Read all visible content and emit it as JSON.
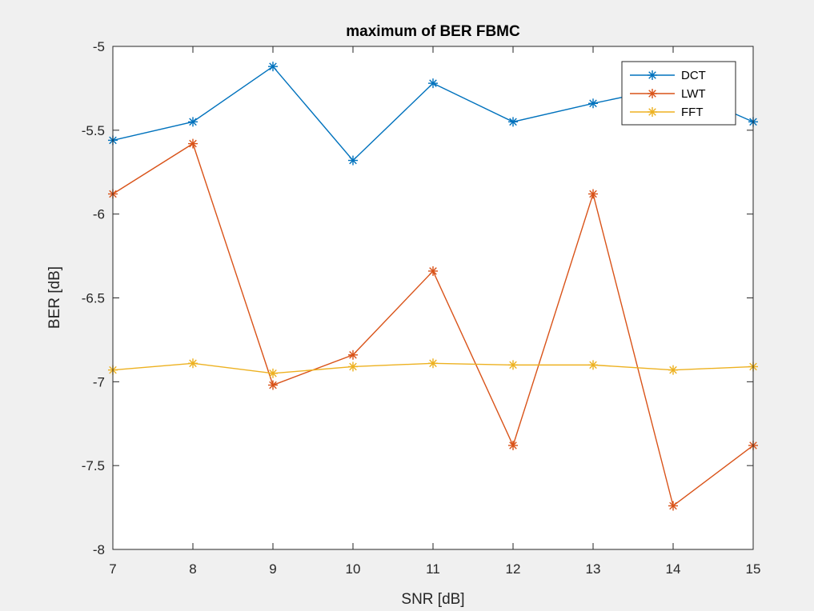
{
  "chart_data": {
    "type": "line",
    "title": "maximum of BER FBMC",
    "xlabel": "SNR [dB]",
    "ylabel": "BER [dB]",
    "x": [
      7,
      8,
      9,
      10,
      11,
      12,
      13,
      14,
      15
    ],
    "xlim": [
      7,
      15
    ],
    "ylim": [
      -8,
      -5
    ],
    "xticks": [
      "7",
      "8",
      "9",
      "10",
      "11",
      "12",
      "13",
      "14",
      "15"
    ],
    "yticks": [
      "-5",
      "-5.5",
      "-6",
      "-6.5",
      "-7",
      "-7.5",
      "-8"
    ],
    "grid": false,
    "legend_position": "top-right",
    "marker": "asterisk",
    "series": [
      {
        "name": "DCT",
        "color": "#0072BD",
        "values": [
          -5.56,
          -5.45,
          -5.12,
          -5.68,
          -5.22,
          -5.45,
          -5.34,
          -5.24,
          -5.45
        ]
      },
      {
        "name": "LWT",
        "color": "#D95319",
        "values": [
          -5.88,
          -5.58,
          -7.02,
          -6.84,
          -6.34,
          -7.38,
          -5.88,
          -7.74,
          -7.38
        ]
      },
      {
        "name": "FFT",
        "color": "#EDB120",
        "values": [
          -6.93,
          -6.89,
          -6.95,
          -6.91,
          -6.89,
          -6.9,
          -6.9,
          -6.93,
          -6.91
        ]
      }
    ]
  }
}
